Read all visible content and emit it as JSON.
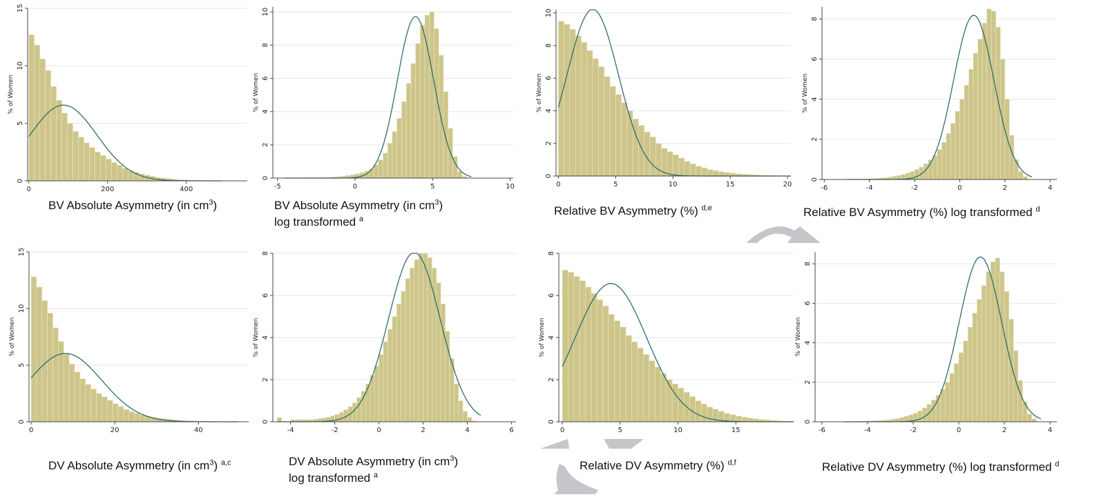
{
  "chart_data": [
    {
      "type": "bar",
      "subtype": "histogram-with-normal-curve",
      "ylabel": "% of Women",
      "xlim": [
        -3,
        555
      ],
      "ylim": [
        0,
        15
      ],
      "xticks": [
        0,
        200,
        400
      ],
      "yticks": [
        0,
        5,
        10,
        15
      ],
      "bins": {
        "start": 0,
        "width": 14,
        "values": [
          12.7,
          11.8,
          10.6,
          9.6,
          8.2,
          7.0,
          5.9,
          5.0,
          4.3,
          3.8,
          3.3,
          2.9,
          2.5,
          2.2,
          1.9,
          1.6,
          1.35,
          1.1,
          0.9,
          0.75,
          0.6,
          0.5,
          0.4,
          0.3,
          0.25,
          0.2,
          0.15,
          0.1,
          0.08,
          0.06,
          0.05,
          0.04,
          0.03,
          0.02
        ]
      },
      "normal_curve": {
        "mean": 88,
        "sd": 85
      },
      "caption": {
        "text": "BV Absolute Asymmetry (in cm",
        "sup": "3",
        "end": ")",
        "line2": "",
        "note": ""
      }
    },
    {
      "type": "bar",
      "subtype": "histogram-with-normal-curve",
      "ylabel": "% of Women",
      "xlim": [
        -5.3,
        10.2
      ],
      "ylim": [
        0,
        10.3
      ],
      "xticks": [
        -5,
        0,
        5,
        10
      ],
      "yticks": [
        0,
        2,
        4,
        6,
        8,
        10
      ],
      "bins": {
        "start": -4.5,
        "width": 0.3,
        "values": [
          0.01,
          0.01,
          0.01,
          0.01,
          0.02,
          0.02,
          0.02,
          0.03,
          0.04,
          0.05,
          0.07,
          0.09,
          0.12,
          0.16,
          0.2,
          0.26,
          0.33,
          0.42,
          0.55,
          0.8,
          1.1,
          1.5,
          2.1,
          2.8,
          3.6,
          4.6,
          5.7,
          6.9,
          8.1,
          9.2,
          9.8,
          10.0,
          9.0,
          7.4,
          5.2,
          3.0,
          1.3,
          0.4,
          0.1
        ]
      },
      "normal_curve": {
        "mean": 3.9,
        "sd": 1.17
      },
      "caption": {
        "text": "BV Absolute Asymmetry (in cm",
        "sup": "3",
        "end": ")",
        "line2": "log transformed",
        "note": "a"
      }
    },
    {
      "type": "bar",
      "subtype": "histogram-with-normal-curve",
      "ylabel": "% of Women",
      "xlim": [
        -0.2,
        20.3
      ],
      "ylim": [
        0,
        10.2
      ],
      "xticks": [
        0,
        5,
        10,
        15,
        20
      ],
      "yticks": [
        0,
        2,
        4,
        6,
        8,
        10
      ],
      "bins": {
        "start": 0,
        "width": 0.5,
        "values": [
          9.5,
          9.3,
          9.0,
          8.6,
          8.2,
          7.7,
          7.2,
          6.7,
          6.1,
          5.5,
          5.0,
          4.5,
          4.0,
          3.5,
          3.1,
          2.7,
          2.4,
          2.0,
          1.7,
          1.5,
          1.3,
          1.1,
          0.9,
          0.75,
          0.6,
          0.5,
          0.4,
          0.33,
          0.27,
          0.22,
          0.18,
          0.14,
          0.11,
          0.09,
          0.07,
          0.05,
          0.04,
          0.03,
          0.02,
          0.01
        ]
      },
      "normal_curve": {
        "mean": 3.0,
        "sd": 2.25
      },
      "caption": {
        "text": "Relative BV Asymmetry (%)",
        "sup": "",
        "end": "",
        "line2": "",
        "note": "d,e"
      }
    },
    {
      "type": "bar",
      "subtype": "histogram-with-normal-curve",
      "ylabel": "% of Women",
      "xlim": [
        -6.1,
        4.3
      ],
      "ylim": [
        0,
        8.6
      ],
      "xticks": [
        -6,
        -4,
        -2,
        0,
        2,
        4
      ],
      "yticks": [
        0,
        2,
        4,
        6,
        8
      ],
      "bins": {
        "start": -5,
        "width": 0.2,
        "values": [
          0.01,
          0.01,
          0.02,
          0.02,
          0.03,
          0.04,
          0.05,
          0.07,
          0.09,
          0.12,
          0.16,
          0.2,
          0.25,
          0.32,
          0.4,
          0.5,
          0.62,
          0.78,
          0.98,
          1.2,
          1.5,
          1.85,
          2.3,
          2.8,
          3.4,
          4.0,
          4.7,
          5.5,
          6.3,
          7.0,
          7.8,
          8.5,
          8.4,
          7.6,
          6.0,
          4.0,
          2.2,
          1.0,
          0.4,
          0.15
        ]
      },
      "normal_curve": {
        "mean": 0.62,
        "sd": 0.89
      },
      "caption": {
        "text": "Relative BV Asymmetry (%) log transformed",
        "sup": "",
        "end": "",
        "line2": "",
        "note": "d"
      }
    },
    {
      "type": "bar",
      "subtype": "histogram-with-normal-curve",
      "ylabel": "% of Women",
      "xlim": [
        -0.5,
        52
      ],
      "ylim": [
        0,
        15
      ],
      "xticks": [
        0,
        20,
        40
      ],
      "yticks": [
        0,
        5,
        10,
        15
      ],
      "bins": {
        "start": 0,
        "width": 1.3,
        "values": [
          12.8,
          11.9,
          10.7,
          9.6,
          8.3,
          7.1,
          6.0,
          5.1,
          4.4,
          3.8,
          3.3,
          2.9,
          2.5,
          2.2,
          1.9,
          1.6,
          1.35,
          1.1,
          0.9,
          0.75,
          0.6,
          0.5,
          0.4,
          0.33,
          0.27,
          0.22,
          0.17,
          0.13,
          0.1,
          0.08,
          0.06,
          0.05,
          0.04,
          0.03,
          0.02,
          0.01,
          0.01
        ]
      },
      "normal_curve": {
        "mean": 8.2,
        "sd": 8.7
      },
      "caption": {
        "text": "DV Absolute Asymmetry (in cm",
        "sup": "3",
        "end": ")",
        "line2": "",
        "note": "a,c"
      }
    },
    {
      "type": "bar",
      "subtype": "histogram-with-normal-curve",
      "ylabel": "% of Women",
      "xlim": [
        -4.8,
        6.2
      ],
      "ylim": [
        0,
        8
      ],
      "xticks": [
        -4,
        -2,
        0,
        2,
        4,
        6
      ],
      "yticks": [
        0,
        2,
        4,
        6,
        8
      ],
      "bins": {
        "start": -4.6,
        "width": 0.2,
        "values": [
          0.2,
          0,
          0,
          0.1,
          0.1,
          0.1,
          0.1,
          0.1,
          0.12,
          0.15,
          0.18,
          0.22,
          0.28,
          0.35,
          0.45,
          0.57,
          0.72,
          0.9,
          1.15,
          1.45,
          1.8,
          2.2,
          2.65,
          3.2,
          3.8,
          4.4,
          5.0,
          5.6,
          6.2,
          6.8,
          7.3,
          7.7,
          8.0,
          8.0,
          7.8,
          7.3,
          6.6,
          5.6,
          4.3,
          3.0,
          1.8,
          1.0,
          0.5,
          0.2,
          0.05
        ]
      },
      "normal_curve": {
        "mean": 1.6,
        "sd": 1.17
      },
      "caption": {
        "text": "DV Absolute Asymmetry (in cm",
        "sup": "3",
        "end": ")",
        "line2": "log transformed",
        "note": "a"
      }
    },
    {
      "type": "bar",
      "subtype": "histogram-with-normal-curve",
      "ylabel": "% of Women",
      "xlim": [
        -0.3,
        20
      ],
      "ylim": [
        0,
        8
      ],
      "xticks": [
        0,
        5,
        10,
        15
      ],
      "yticks": [
        0,
        2,
        4,
        6,
        8
      ],
      "bins": {
        "start": 0,
        "width": 0.5,
        "values": [
          7.2,
          7.1,
          6.9,
          6.7,
          6.4,
          6.1,
          5.8,
          5.5,
          5.1,
          4.8,
          4.5,
          4.1,
          3.8,
          3.5,
          3.2,
          2.9,
          2.6,
          2.3,
          2.0,
          1.8,
          1.6,
          1.4,
          1.2,
          1.0,
          0.85,
          0.7,
          0.6,
          0.5,
          0.4,
          0.33,
          0.27,
          0.22,
          0.18,
          0.14,
          0.11,
          0.09,
          0.07,
          0.05,
          0.03,
          0.02
        ]
      },
      "normal_curve": {
        "mean": 4.2,
        "sd": 3.1
      },
      "caption": {
        "text": "Relative DV Asymmetry (%)",
        "sup": "",
        "end": "",
        "line2": "",
        "note": "d,f"
      }
    },
    {
      "type": "bar",
      "subtype": "histogram-with-normal-curve",
      "ylabel": "% of Women",
      "xlim": [
        -6.3,
        4.3
      ],
      "ylim": [
        0,
        8.6
      ],
      "xticks": [
        -6,
        -4,
        -2,
        0,
        2,
        4
      ],
      "yticks": [
        0,
        2,
        4,
        6,
        8
      ],
      "bins": {
        "start": -5,
        "width": 0.2,
        "values": [
          0.01,
          0.01,
          0.02,
          0.02,
          0.03,
          0.04,
          0.05,
          0.06,
          0.08,
          0.1,
          0.13,
          0.17,
          0.22,
          0.28,
          0.35,
          0.44,
          0.55,
          0.7,
          0.88,
          1.1,
          1.35,
          1.65,
          2.0,
          2.45,
          2.95,
          3.5,
          4.1,
          4.8,
          5.5,
          6.2,
          6.9,
          7.6,
          8.1,
          8.3,
          7.6,
          6.6,
          5.2,
          3.6,
          2.1,
          1.0,
          0.4,
          0.15
        ]
      },
      "normal_curve": {
        "mean": 0.95,
        "sd": 0.93
      },
      "caption": {
        "text": "Relative DV Asymmetry (%) log transformed",
        "sup": "",
        "end": "",
        "line2": "",
        "note": "d"
      }
    }
  ],
  "colors": {
    "bar_fill": "#cdc58a",
    "bar_edge": "#ece8c6",
    "curve": "#2c6e6a",
    "grid": "#e6e6e6",
    "axis": "#444444",
    "deco": "#c4c6ca"
  }
}
